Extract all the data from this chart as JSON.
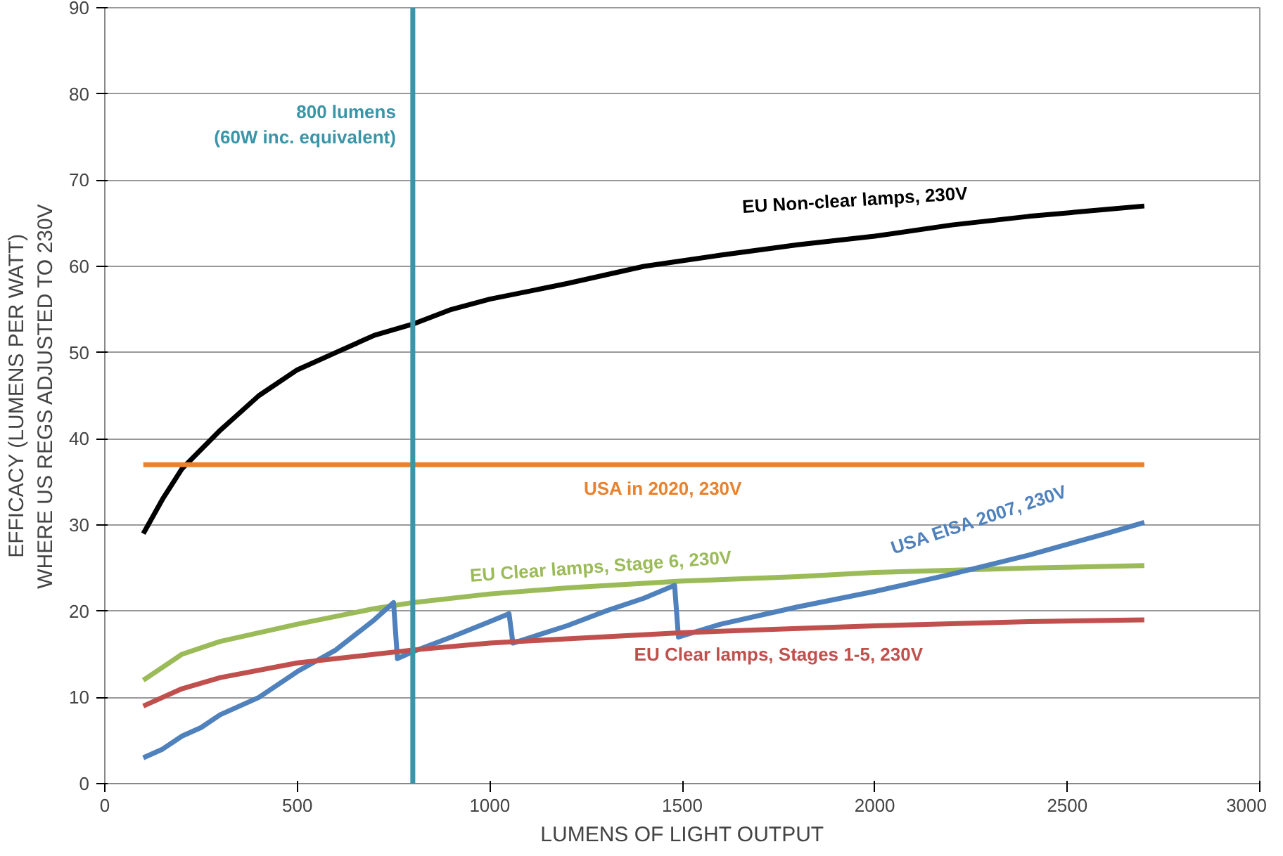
{
  "chart_data": {
    "type": "line",
    "xlabel": "LUMENS OF LIGHT OUTPUT",
    "ylabel": "EFFICACY (LUMENS PER WATT)\nWHERE US REGS ADJUSTED TO 230V",
    "xlim": [
      0,
      3000
    ],
    "ylim": [
      0,
      90
    ],
    "xticks": [
      0,
      500,
      1000,
      1500,
      2000,
      2500,
      3000
    ],
    "yticks": [
      0,
      10,
      20,
      30,
      40,
      50,
      60,
      70,
      80,
      90
    ],
    "grid": "y",
    "legend": false,
    "marker": "none",
    "line_style": "solid",
    "series": [
      {
        "name": "EU Non-clear lamps, 230V",
        "color": "#000000",
        "x": [
          100,
          150,
          200,
          300,
          400,
          500,
          600,
          700,
          800,
          900,
          1000,
          1200,
          1400,
          1600,
          1800,
          2000,
          2200,
          2400,
          2600,
          2700
        ],
        "values": [
          29,
          33,
          36.5,
          41,
          45,
          48,
          50,
          52,
          53.3,
          55,
          56.2,
          58,
          60,
          61.3,
          62.5,
          63.5,
          64.8,
          65.8,
          66.6,
          67
        ]
      },
      {
        "name": "USA in 2020, 230V",
        "color": "#e8822e",
        "x": [
          100,
          2700
        ],
        "values": [
          37,
          37
        ]
      },
      {
        "name": "EU Clear lamps, Stage 6, 230V",
        "color": "#9bbb59",
        "x": [
          100,
          200,
          300,
          500,
          700,
          800,
          1000,
          1200,
          1500,
          1800,
          2000,
          2400,
          2700
        ],
        "values": [
          12,
          15,
          16.5,
          18.5,
          20.3,
          21,
          22,
          22.7,
          23.5,
          24,
          24.5,
          25,
          25.3
        ]
      },
      {
        "name": "USA EISA 2007, 230V",
        "color": "#4f81bd",
        "x": [
          100,
          150,
          200,
          250,
          300,
          400,
          500,
          600,
          700,
          750,
          760,
          800,
          900,
          1000,
          1050,
          1060,
          1200,
          1300,
          1400,
          1480,
          1490,
          1600,
          1800,
          2000,
          2200,
          2400,
          2600,
          2700
        ],
        "values": [
          3,
          4,
          5.5,
          6.5,
          8,
          10,
          13,
          15.5,
          19,
          21,
          14.5,
          15.3,
          17,
          18.8,
          19.7,
          16.3,
          18.3,
          20,
          21.5,
          23,
          17,
          18.5,
          20.5,
          22.3,
          24.3,
          26.5,
          29,
          30.3
        ]
      },
      {
        "name": "EU Clear lamps, Stages 1-5, 230V",
        "color": "#c0504d",
        "x": [
          100,
          200,
          300,
          500,
          700,
          800,
          1000,
          1200,
          1500,
          1800,
          2000,
          2400,
          2700
        ],
        "values": [
          9,
          11,
          12.3,
          14,
          15,
          15.5,
          16.3,
          16.8,
          17.5,
          18,
          18.3,
          18.8,
          19
        ]
      }
    ],
    "ref_lines": [
      {
        "axis": "x",
        "value": 800,
        "label": "800 lumens\n(60W inc. equivalent)",
        "color": "#3a95a8"
      }
    ]
  }
}
